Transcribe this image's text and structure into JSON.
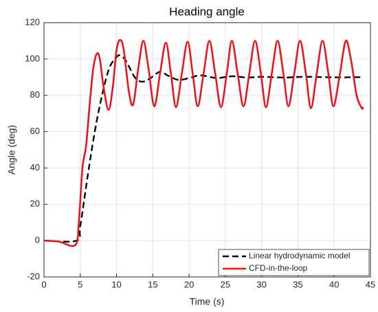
{
  "chart_data": {
    "type": "line",
    "title": "Heading angle",
    "x_label": "Time (s)",
    "y_label": "Angle (deg)",
    "xlim": [
      0,
      45
    ],
    "xticks": [
      0,
      5,
      10,
      15,
      20,
      25,
      30,
      35,
      40,
      45
    ],
    "ylim": [
      -20,
      120
    ],
    "yticks": [
      -20,
      0,
      20,
      40,
      60,
      80,
      100,
      120
    ],
    "grid": true,
    "legend": "lower right",
    "series": [
      {
        "name": "Linear hydrodynamic model",
        "color": "#000000",
        "dash": true,
        "x": [
          0,
          4.5,
          5,
          6,
          7,
          8,
          9,
          10,
          10.5,
          11.3,
          12.5,
          13.5,
          14.5,
          16,
          17,
          18.5,
          20,
          21.5,
          23,
          24,
          26,
          28,
          30,
          33,
          36,
          40,
          44
        ],
        "values": [
          0,
          0,
          8,
          35,
          60,
          80,
          95,
          101,
          102,
          99,
          90,
          87.5,
          89,
          93,
          91,
          88.5,
          89.5,
          91,
          90,
          89.5,
          90.5,
          89.8,
          90.2,
          89.8,
          90.2,
          89.9,
          90
        ]
      },
      {
        "name": "CFD-in-the-loop",
        "color": "#e8161b",
        "dash": false,
        "x": [
          0,
          2,
          4.3,
          4.8,
          5.3,
          5.8,
          6.3,
          6.8,
          7.3,
          7.7,
          8.2,
          8.9,
          9.5,
          10,
          10.5,
          11,
          11.7,
          12.3,
          13,
          13.7,
          14.4,
          15.2,
          16,
          16.8,
          17.5,
          18.2,
          19,
          19.8,
          20.5,
          21.2,
          22,
          22.8,
          23.6,
          24.4,
          25.2,
          25.9,
          26.7,
          27.5,
          28.3,
          29.1,
          29.9,
          30.6,
          31.4,
          32.2,
          33,
          33.7,
          34.5,
          35.3,
          36.1,
          36.8,
          37.6,
          38.4,
          39.2,
          39.9,
          40.8,
          41.6,
          42.3,
          43.1,
          43.8,
          44
        ],
        "values": [
          0,
          -0.5,
          -2.5,
          10,
          40,
          52,
          75,
          95,
          103,
          100,
          85,
          72,
          85,
          105,
          110.5,
          105,
          82,
          75,
          95,
          110,
          95,
          74,
          92,
          109,
          92,
          73.5,
          92,
          109.5,
          92,
          74,
          92,
          110,
          92,
          73.5,
          92,
          110,
          92,
          74,
          92,
          110,
          92,
          73.5,
          92,
          110,
          92,
          74,
          92,
          110,
          92,
          73,
          92,
          110,
          92,
          74,
          92,
          110,
          100,
          80,
          73,
          73.5
        ]
      }
    ]
  }
}
